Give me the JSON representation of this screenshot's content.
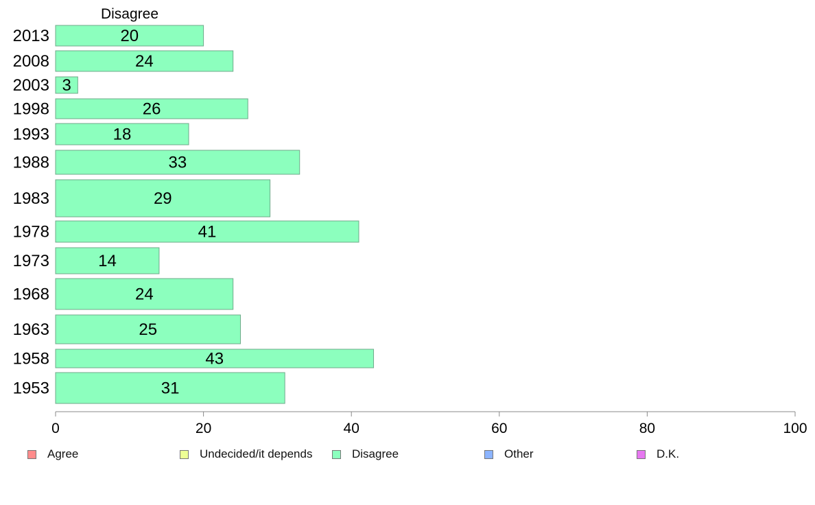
{
  "chart_data": {
    "type": "bar",
    "orientation": "horizontal",
    "title": "Disagree",
    "categories": [
      "2013",
      "2008",
      "2003",
      "1998",
      "1993",
      "1988",
      "1983",
      "1978",
      "1973",
      "1968",
      "1963",
      "1958",
      "1953"
    ],
    "series": [
      {
        "name": "Disagree",
        "values": [
          20,
          24,
          3,
          26,
          18,
          33,
          29,
          41,
          14,
          24,
          25,
          43,
          31
        ]
      }
    ],
    "xlim": [
      0,
      100
    ],
    "xticks": [
      "0",
      "20",
      "40",
      "60",
      "80",
      "100"
    ],
    "grid": false,
    "legend_placement": "bottom",
    "legend": [
      {
        "label": "Agree",
        "color": "#ff8c8c"
      },
      {
        "label": "Undecided/it depends",
        "color": "#eeff96"
      },
      {
        "label": "Disagree",
        "color": "#8cffbe"
      },
      {
        "label": "Other",
        "color": "#8cb4ff"
      },
      {
        "label": "D.K.",
        "color": "#e678f0"
      }
    ],
    "bar_color": "#8cffbe"
  }
}
